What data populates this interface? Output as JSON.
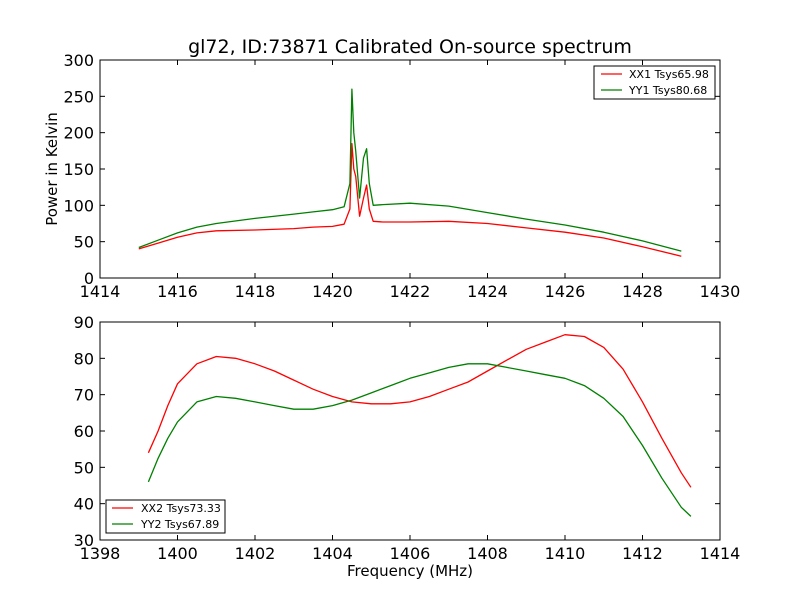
{
  "chart_data": [
    {
      "type": "line",
      "title": "gl72, ID:73871 Calibrated On-source spectrum",
      "xlabel": "",
      "ylabel": "Power in Kelvin",
      "xlim": [
        1414,
        1430
      ],
      "ylim": [
        0,
        300
      ],
      "xticks": [
        "1414",
        "1416",
        "1418",
        "1420",
        "1422",
        "1424",
        "1426",
        "1428",
        "1430"
      ],
      "yticks": [
        "0",
        "50",
        "100",
        "150",
        "200",
        "250",
        "300"
      ],
      "grid": false,
      "legend_position": "top-right",
      "series": [
        {
          "name": "XX1 Tsys65.98",
          "color": "#ff0000",
          "x": [
            1415.0,
            1415.5,
            1416.0,
            1416.5,
            1417.0,
            1418.0,
            1419.0,
            1419.5,
            1420.0,
            1420.3,
            1420.45,
            1420.5,
            1420.55,
            1420.6,
            1420.7,
            1420.8,
            1420.88,
            1420.95,
            1421.05,
            1421.3,
            1422.0,
            1423.0,
            1424.0,
            1425.0,
            1426.0,
            1427.0,
            1428.0,
            1429.0
          ],
          "y": [
            40,
            48,
            56,
            62,
            65,
            66,
            68,
            70,
            71,
            74,
            95,
            185,
            150,
            140,
            85,
            110,
            128,
            95,
            78,
            77,
            77,
            78,
            75,
            69,
            63,
            55,
            43,
            30
          ]
        },
        {
          "name": "YY1 Tsys80.68",
          "color": "#008000",
          "x": [
            1415.0,
            1415.5,
            1416.0,
            1416.5,
            1417.0,
            1418.0,
            1419.0,
            1419.5,
            1420.0,
            1420.3,
            1420.45,
            1420.5,
            1420.55,
            1420.6,
            1420.7,
            1420.8,
            1420.88,
            1420.95,
            1421.05,
            1421.3,
            1422.0,
            1423.0,
            1424.0,
            1425.0,
            1426.0,
            1427.0,
            1428.0,
            1429.0
          ],
          "y": [
            42,
            52,
            62,
            70,
            75,
            82,
            88,
            91,
            94,
            98,
            130,
            260,
            200,
            175,
            110,
            165,
            178,
            130,
            100,
            101,
            103,
            99,
            90,
            81,
            73,
            63,
            51,
            37
          ]
        }
      ]
    },
    {
      "type": "line",
      "title": "",
      "xlabel": "Frequency (MHz)",
      "ylabel": "",
      "xlim": [
        1398,
        1414
      ],
      "ylim": [
        30,
        90
      ],
      "xticks": [
        "1398",
        "1400",
        "1402",
        "1404",
        "1406",
        "1408",
        "1410",
        "1412",
        "1414"
      ],
      "yticks": [
        "30",
        "40",
        "50",
        "60",
        "70",
        "80",
        "90"
      ],
      "grid": false,
      "legend_position": "bottom-left",
      "series": [
        {
          "name": "XX2 Tsys73.33",
          "color": "#ff0000",
          "x": [
            1399.25,
            1399.5,
            1399.75,
            1400.0,
            1400.5,
            1401.0,
            1401.5,
            1402.0,
            1402.5,
            1403.0,
            1403.5,
            1404.0,
            1404.5,
            1405.0,
            1405.5,
            1406.0,
            1406.5,
            1407.0,
            1407.5,
            1408.0,
            1408.5,
            1409.0,
            1409.5,
            1410.0,
            1410.5,
            1411.0,
            1411.5,
            1412.0,
            1412.5,
            1413.0,
            1413.25
          ],
          "y": [
            54,
            60,
            67,
            73,
            78.5,
            80.5,
            80,
            78.5,
            76.5,
            74,
            71.5,
            69.5,
            68,
            67.5,
            67.5,
            68,
            69.5,
            71.5,
            73.5,
            76.5,
            79.5,
            82.5,
            84.5,
            86.5,
            86,
            83,
            77,
            68,
            58,
            48.5,
            44.5
          ]
        },
        {
          "name": "YY2 Tsys67.89",
          "color": "#008000",
          "x": [
            1399.25,
            1399.5,
            1399.75,
            1400.0,
            1400.5,
            1401.0,
            1401.5,
            1402.0,
            1402.5,
            1403.0,
            1403.5,
            1404.0,
            1404.5,
            1405.0,
            1405.5,
            1406.0,
            1406.5,
            1407.0,
            1407.5,
            1408.0,
            1408.5,
            1409.0,
            1409.5,
            1410.0,
            1410.5,
            1411.0,
            1411.5,
            1412.0,
            1412.5,
            1413.0,
            1413.25
          ],
          "y": [
            46,
            52.5,
            58,
            62.5,
            68,
            69.5,
            69,
            68,
            67,
            66,
            66,
            67,
            68.5,
            70.5,
            72.5,
            74.5,
            76,
            77.5,
            78.5,
            78.5,
            77.5,
            76.5,
            75.5,
            74.5,
            72.5,
            69,
            64,
            56,
            47,
            39,
            36.5
          ]
        }
      ]
    }
  ]
}
